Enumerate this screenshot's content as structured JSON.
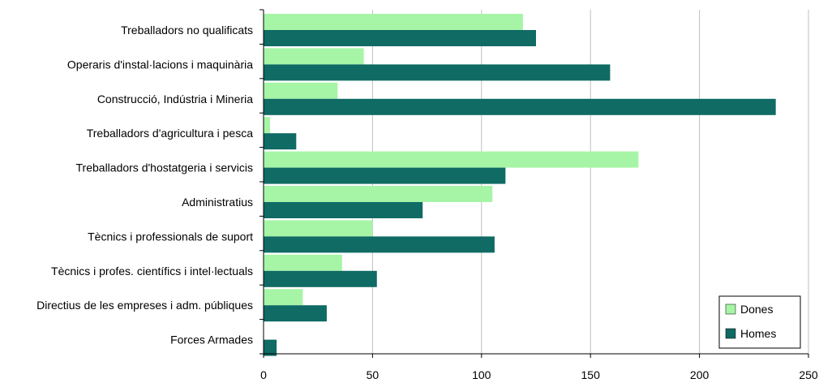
{
  "chart_data": {
    "type": "bar",
    "orientation": "horizontal",
    "categories": [
      "Treballadors no qualificats",
      "Operaris d'instal·lacions i maquinària",
      "Construcció, Indústria i Mineria",
      "Treballadors d'agricultura i pesca",
      "Treballadors d'hostatgeria i servicis",
      "Administratius",
      "Tècnics i professionals de suport",
      "Tècnics i profes. científics i intel·lectuals",
      "Directius de les empreses i adm. públiques",
      "Forces Armades"
    ],
    "series": [
      {
        "name": "Dones",
        "color": "#a6f5a6",
        "values": [
          119,
          46,
          34,
          3,
          172,
          105,
          50,
          36,
          18,
          0
        ]
      },
      {
        "name": "Homes",
        "color": "#0f6b64",
        "values": [
          125,
          159,
          235,
          15,
          111,
          73,
          106,
          52,
          29,
          6
        ]
      }
    ],
    "xlim": [
      0,
      250
    ],
    "xticks": [
      0,
      50,
      100,
      150,
      200,
      250
    ],
    "grid": true,
    "legend": "bottom-right",
    "title": "",
    "xlabel": "",
    "ylabel": ""
  }
}
